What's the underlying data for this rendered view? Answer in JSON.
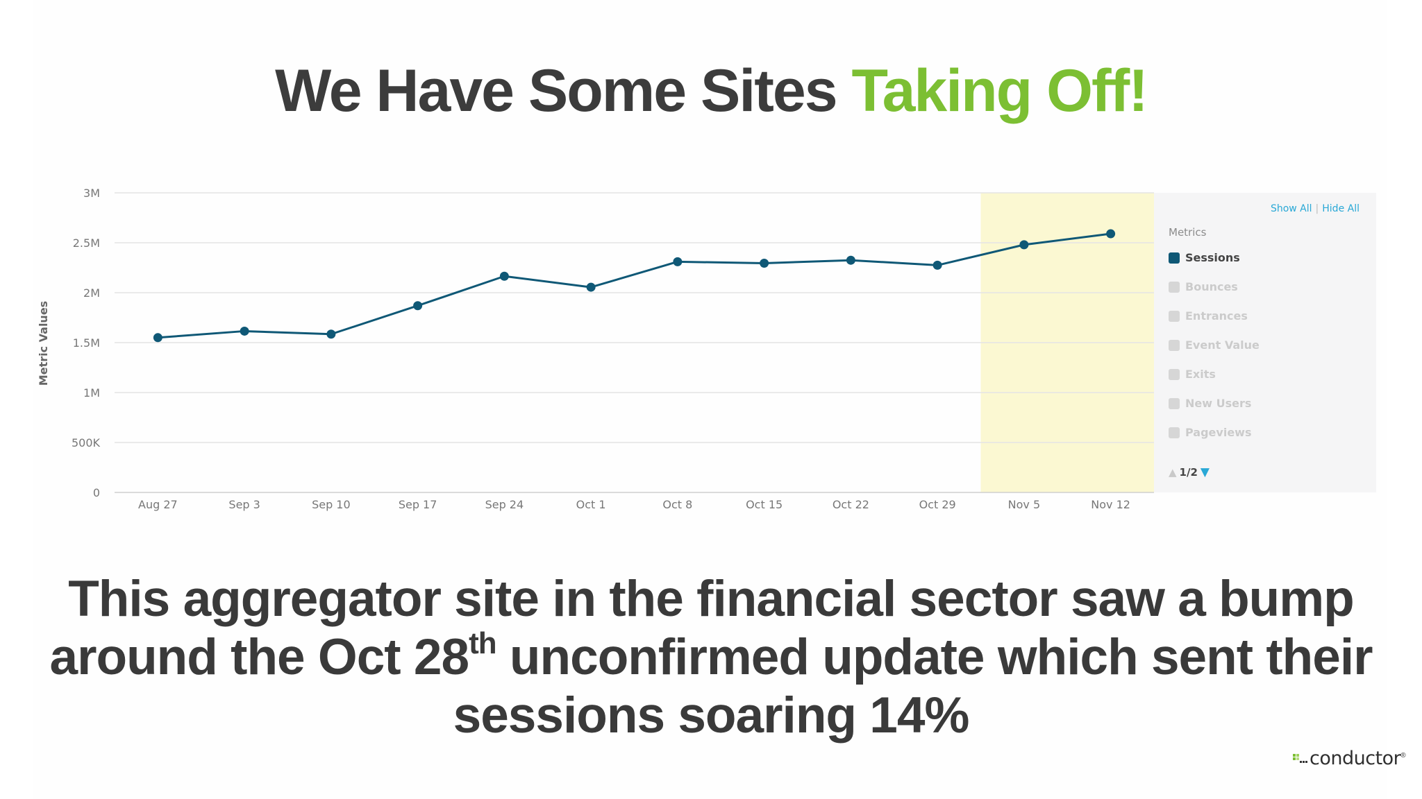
{
  "slide": {
    "title_main": "We Have Some Sites ",
    "title_accent": "Taking Off!",
    "caption_line1": "This aggregator site in the financial sector saw a bump",
    "caption_line2a": "around the Oct 28",
    "caption_line2_sup": "th",
    "caption_line2b": " unconfirmed update which sent their",
    "caption_line3": "sessions soaring 14%",
    "logo_text": "conductor",
    "logo_mark": "®"
  },
  "colors": {
    "title_accent": "#7cbf33",
    "series_line": "#0f5876",
    "highlight_band": "#fbf8d2",
    "link": "#29a8d6"
  },
  "legend": {
    "show_all": "Show All",
    "separator": "|",
    "hide_all": "Hide All",
    "heading": "Metrics",
    "items": [
      {
        "label": "Sessions",
        "active": true
      },
      {
        "label": "Bounces",
        "active": false
      },
      {
        "label": "Entrances",
        "active": false
      },
      {
        "label": "Event Value",
        "active": false
      },
      {
        "label": "Exits",
        "active": false
      },
      {
        "label": "New Users",
        "active": false
      },
      {
        "label": "Pageviews",
        "active": false
      }
    ],
    "pager": "1/2",
    "pager_up_icon": "triangle-up-icon",
    "pager_down_icon": "triangle-down-icon"
  },
  "chart_data": {
    "type": "line",
    "title": "",
    "xlabel": "",
    "ylabel": "Metric Values",
    "categories": [
      "Aug 27",
      "Sep 3",
      "Sep 10",
      "Sep 17",
      "Sep 24",
      "Oct 1",
      "Oct 8",
      "Oct 15",
      "Oct 22",
      "Oct 29",
      "Nov 5",
      "Nov 12"
    ],
    "series": [
      {
        "name": "Sessions",
        "values": [
          1550000,
          1615000,
          1585000,
          1870000,
          2165000,
          2055000,
          2310000,
          2295000,
          2325000,
          2275000,
          2480000,
          2590000
        ]
      }
    ],
    "ylim": [
      0,
      3000000
    ],
    "yticks": [
      0,
      500000,
      1000000,
      1500000,
      2000000,
      2500000,
      3000000
    ],
    "ytick_labels": [
      "0",
      "500K",
      "1M",
      "1.5M",
      "2M",
      "2.5M",
      "3M"
    ],
    "highlight_range": [
      "Nov 5",
      "Nov 12"
    ],
    "grid": true,
    "legend_position": "right"
  }
}
